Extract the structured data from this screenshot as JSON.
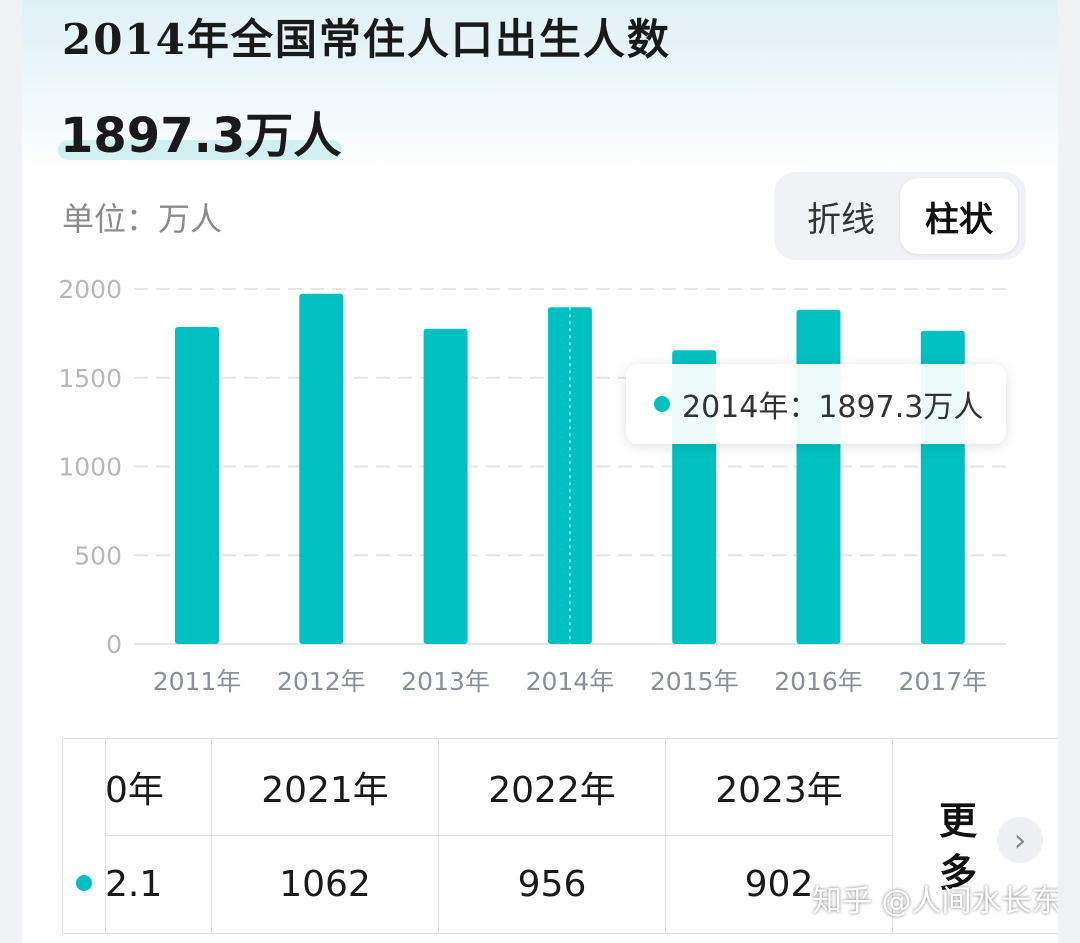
{
  "header": {
    "title": "2014年全国常住人口出生人数",
    "value": "1897.3万人",
    "unit_label": "单位：万人"
  },
  "toggle": {
    "line_label": "折线",
    "bar_label": "柱状",
    "active": "柱状"
  },
  "colors": {
    "bar": "#00c0c2",
    "grid": "#e6e6e6",
    "tick": "#b8b8b8",
    "category_label": "#8a8f9a"
  },
  "chart_data": {
    "type": "bar",
    "categories": [
      "2011年",
      "2012年",
      "2013年",
      "2014年",
      "2015年",
      "2016年",
      "2017年"
    ],
    "values": [
      1786,
      1973,
      1776,
      1897.3,
      1655,
      1883,
      1765
    ],
    "ylim": [
      0,
      2000
    ],
    "yticks": [
      0,
      500,
      1000,
      1500,
      2000
    ],
    "grid": true,
    "highlighted_index": 3
  },
  "tooltip": {
    "text": "2014年：1897.3万人"
  },
  "table": {
    "headers": [
      "0年",
      "2021年",
      "2022年",
      "2023年"
    ],
    "values": [
      "2.1",
      "1062",
      "956",
      "902"
    ],
    "more_label": "更多",
    "more_icon": "chevron-right-icon"
  },
  "watermark": "知乎 @人间水长东"
}
